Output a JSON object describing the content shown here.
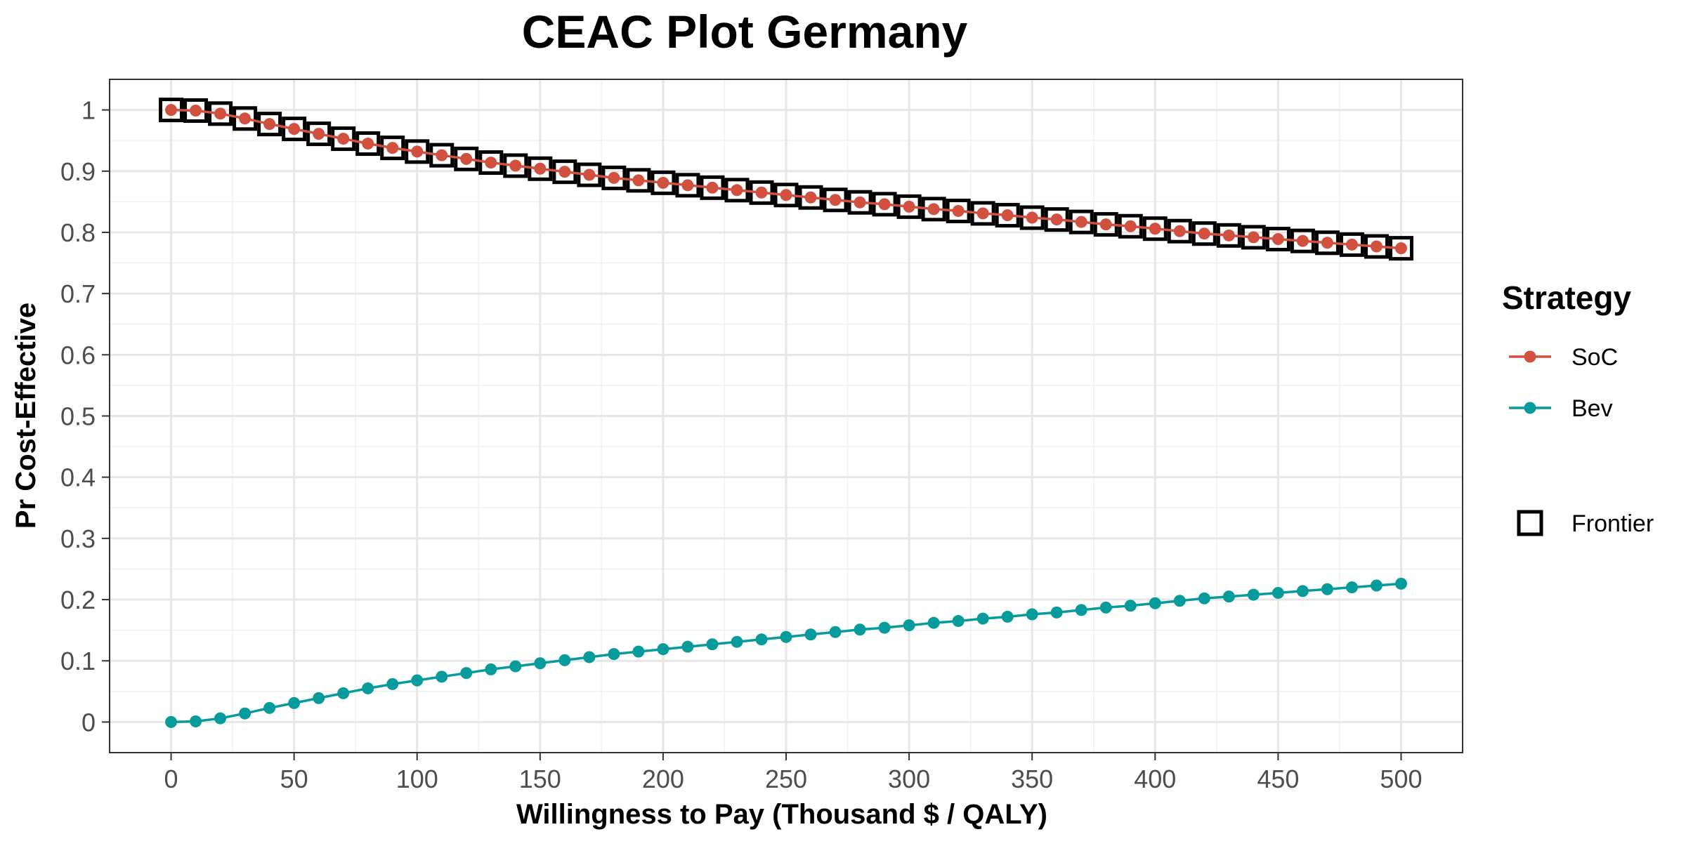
{
  "chart_data": {
    "type": "line",
    "title": "CEAC Plot Germany",
    "xlabel": "Willingness to Pay (Thousand $ / QALY)",
    "ylabel": "Pr Cost-Effective",
    "xlim": [
      -25,
      525
    ],
    "ylim": [
      -0.05,
      1.05
    ],
    "x_ticks": [
      0,
      50,
      100,
      150,
      200,
      250,
      300,
      350,
      400,
      450,
      500
    ],
    "x_tick_labels": [
      "0",
      "50",
      "100",
      "150",
      "200",
      "250",
      "300",
      "350",
      "400",
      "450",
      "500"
    ],
    "y_ticks": [
      0,
      0.1,
      0.2,
      0.3,
      0.4,
      0.5,
      0.6,
      0.7,
      0.8,
      0.9,
      1
    ],
    "y_tick_labels": [
      "0",
      "0.1",
      "0.2",
      "0.3",
      "0.4",
      "0.5",
      "0.6",
      "0.7",
      "0.8",
      "0.9",
      "1"
    ],
    "grid": true,
    "legend_position": "right",
    "legend_title": "Strategy",
    "x": [
      0,
      10,
      20,
      30,
      40,
      50,
      60,
      70,
      80,
      90,
      100,
      110,
      120,
      130,
      140,
      150,
      160,
      170,
      180,
      190,
      200,
      210,
      220,
      230,
      240,
      250,
      260,
      270,
      280,
      290,
      300,
      310,
      320,
      330,
      340,
      350,
      360,
      370,
      380,
      390,
      400,
      410,
      420,
      430,
      440,
      450,
      460,
      470,
      480,
      490,
      500
    ],
    "series": [
      {
        "name": "SoC",
        "color": "#D2503F",
        "values": [
          1.0,
          0.999,
          0.994,
          0.986,
          0.977,
          0.969,
          0.961,
          0.953,
          0.945,
          0.938,
          0.932,
          0.926,
          0.92,
          0.914,
          0.909,
          0.904,
          0.899,
          0.894,
          0.889,
          0.885,
          0.881,
          0.877,
          0.873,
          0.869,
          0.865,
          0.861,
          0.857,
          0.853,
          0.849,
          0.846,
          0.842,
          0.838,
          0.835,
          0.831,
          0.828,
          0.824,
          0.821,
          0.817,
          0.813,
          0.81,
          0.806,
          0.802,
          0.798,
          0.795,
          0.792,
          0.789,
          0.786,
          0.783,
          0.78,
          0.777,
          0.774
        ]
      },
      {
        "name": "Bev",
        "color": "#079B9C",
        "values": [
          0.0,
          0.001,
          0.006,
          0.014,
          0.023,
          0.031,
          0.039,
          0.047,
          0.055,
          0.062,
          0.068,
          0.074,
          0.08,
          0.086,
          0.091,
          0.096,
          0.101,
          0.106,
          0.111,
          0.115,
          0.119,
          0.123,
          0.127,
          0.131,
          0.135,
          0.139,
          0.143,
          0.147,
          0.151,
          0.154,
          0.158,
          0.162,
          0.165,
          0.169,
          0.172,
          0.176,
          0.179,
          0.183,
          0.187,
          0.19,
          0.194,
          0.198,
          0.202,
          0.205,
          0.208,
          0.211,
          0.214,
          0.217,
          0.22,
          0.223,
          0.226
        ]
      }
    ],
    "frontier": {
      "name": "Frontier",
      "series": "SoC"
    }
  }
}
